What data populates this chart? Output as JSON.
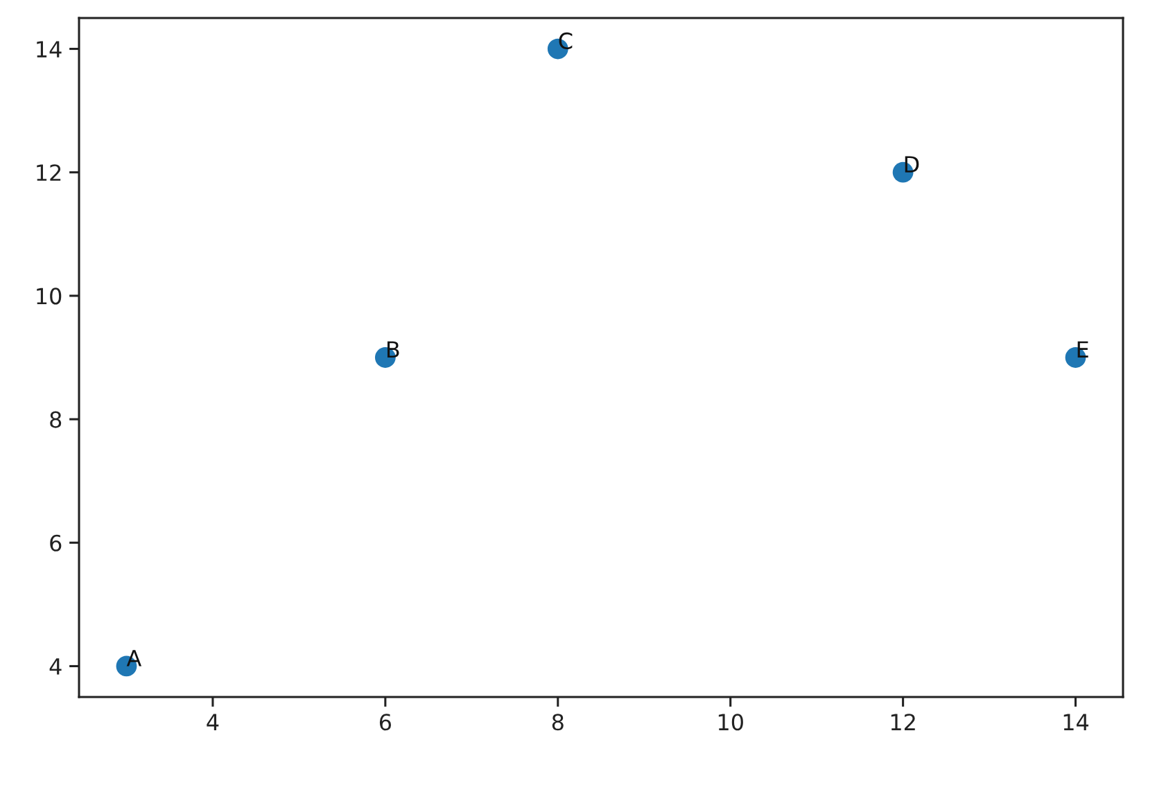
{
  "chart_data": {
    "type": "scatter",
    "x": [
      3,
      6,
      8,
      12,
      14
    ],
    "series": [
      {
        "color": "#1f77b4",
        "values": [
          4,
          9,
          14,
          12,
          9
        ]
      }
    ],
    "marker": "circle",
    "annotations": [
      {
        "text": "A",
        "x": 3,
        "y": 4
      },
      {
        "text": "B",
        "x": 6,
        "y": 9
      },
      {
        "text": "C",
        "x": 8,
        "y": 14
      },
      {
        "text": "D",
        "x": 12,
        "y": 12
      },
      {
        "text": "E",
        "x": 14,
        "y": 9
      }
    ],
    "xlim": [
      2.45,
      14.55
    ],
    "ylim": [
      3.5,
      14.5
    ],
    "xticks": [
      4,
      6,
      8,
      10,
      12,
      14
    ],
    "yticks": [
      4,
      6,
      8,
      10,
      12,
      14
    ],
    "grid": false
  }
}
